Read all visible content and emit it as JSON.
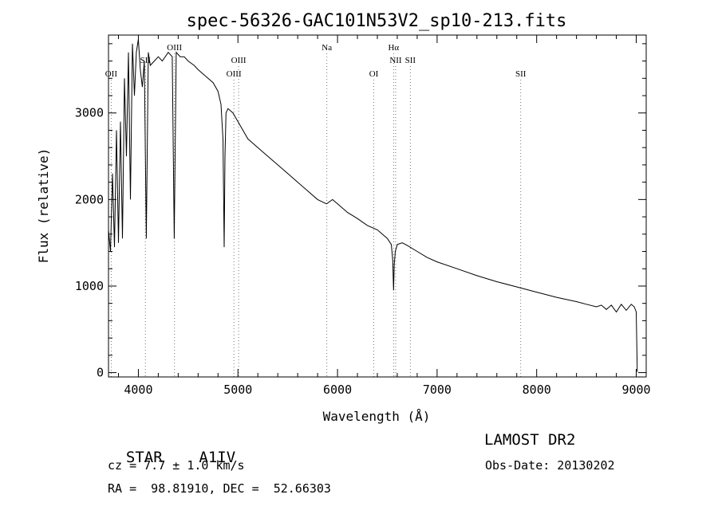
{
  "chart_data": {
    "type": "line",
    "title": "spec-56326-GAC101N53V2_sp10-213.fits",
    "xlabel": "Wavelength (Å)",
    "ylabel": "Flux (relative)",
    "xlim": [
      3700,
      9100
    ],
    "ylim": [
      -50,
      3900
    ],
    "xticks": [
      4000,
      5000,
      6000,
      7000,
      8000,
      9000
    ],
    "yticks": [
      0,
      1000,
      2000,
      3000
    ],
    "grid": false,
    "series": [
      {
        "x": [
          3700,
          3720,
          3740,
          3760,
          3780,
          3800,
          3820,
          3840,
          3860,
          3880,
          3900,
          3920,
          3940,
          3960,
          3980,
          4000,
          4020,
          4040,
          4060,
          4080,
          4100,
          4120,
          4160,
          4200,
          4240,
          4300,
          4340,
          4360,
          4380,
          4420,
          4460,
          4500,
          4560,
          4600,
          4650,
          4700,
          4750,
          4800,
          4830,
          4850,
          4862,
          4870,
          4880,
          4900,
          4950,
          5000,
          5100,
          5200,
          5300,
          5400,
          5500,
          5600,
          5700,
          5800,
          5890,
          5950,
          6000,
          6100,
          6200,
          6300,
          6400,
          6500,
          6540,
          6555,
          6563,
          6570,
          6580,
          6600,
          6650,
          6700,
          6800,
          6900,
          7000,
          7200,
          7400,
          7600,
          7800,
          8000,
          8200,
          8400,
          8500,
          8600,
          8650,
          8700,
          8750,
          8800,
          8850,
          8900,
          8950,
          8980,
          9000,
          9010
        ],
        "y": [
          1650,
          1400,
          2300,
          1450,
          2800,
          1500,
          2900,
          1550,
          3400,
          2500,
          3700,
          2000,
          3800,
          3200,
          3700,
          3850,
          3500,
          3300,
          3600,
          1550,
          3700,
          3550,
          3600,
          3650,
          3600,
          3700,
          3650,
          1550,
          3700,
          3650,
          3650,
          3600,
          3550,
          3500,
          3450,
          3400,
          3350,
          3250,
          3100,
          2700,
          1450,
          2500,
          3000,
          3050,
          3000,
          2900,
          2700,
          2600,
          2500,
          2400,
          2300,
          2200,
          2100,
          2000,
          1950,
          2000,
          1950,
          1850,
          1780,
          1700,
          1650,
          1550,
          1480,
          1300,
          950,
          1250,
          1400,
          1480,
          1500,
          1470,
          1400,
          1330,
          1280,
          1200,
          1120,
          1050,
          990,
          930,
          870,
          820,
          790,
          760,
          780,
          730,
          780,
          700,
          790,
          720,
          790,
          760,
          700,
          10
        ]
      }
    ],
    "lines": [
      {
        "label": "OII",
        "x": 3727,
        "row": 3
      },
      {
        "label": "SII",
        "x": 4070,
        "row": 2
      },
      {
        "label": "OIII",
        "x": 4363,
        "row": 1
      },
      {
        "label": "OIII",
        "x": 4959,
        "row": 3
      },
      {
        "label": "OIII",
        "x": 5007,
        "row": 2
      },
      {
        "label": "Na",
        "x": 5893,
        "row": 1
      },
      {
        "label": "OI",
        "x": 6364,
        "row": 3
      },
      {
        "label": "Hα",
        "x": 6563,
        "row": 1
      },
      {
        "label": "NII",
        "x": 6584,
        "row": 2
      },
      {
        "label": "SII",
        "x": 6731,
        "row": 2
      },
      {
        "label": "SII",
        "x": 7840,
        "row": 3
      }
    ]
  },
  "info": {
    "class": "STAR",
    "subclass": "A1IV",
    "survey": "LAMOST DR2",
    "cz": "cz = 7.7 ± 1.0 km/s",
    "obsdate": "Obs-Date: 20130202",
    "radec": "RA =  98.81910, DEC =  52.66303"
  }
}
